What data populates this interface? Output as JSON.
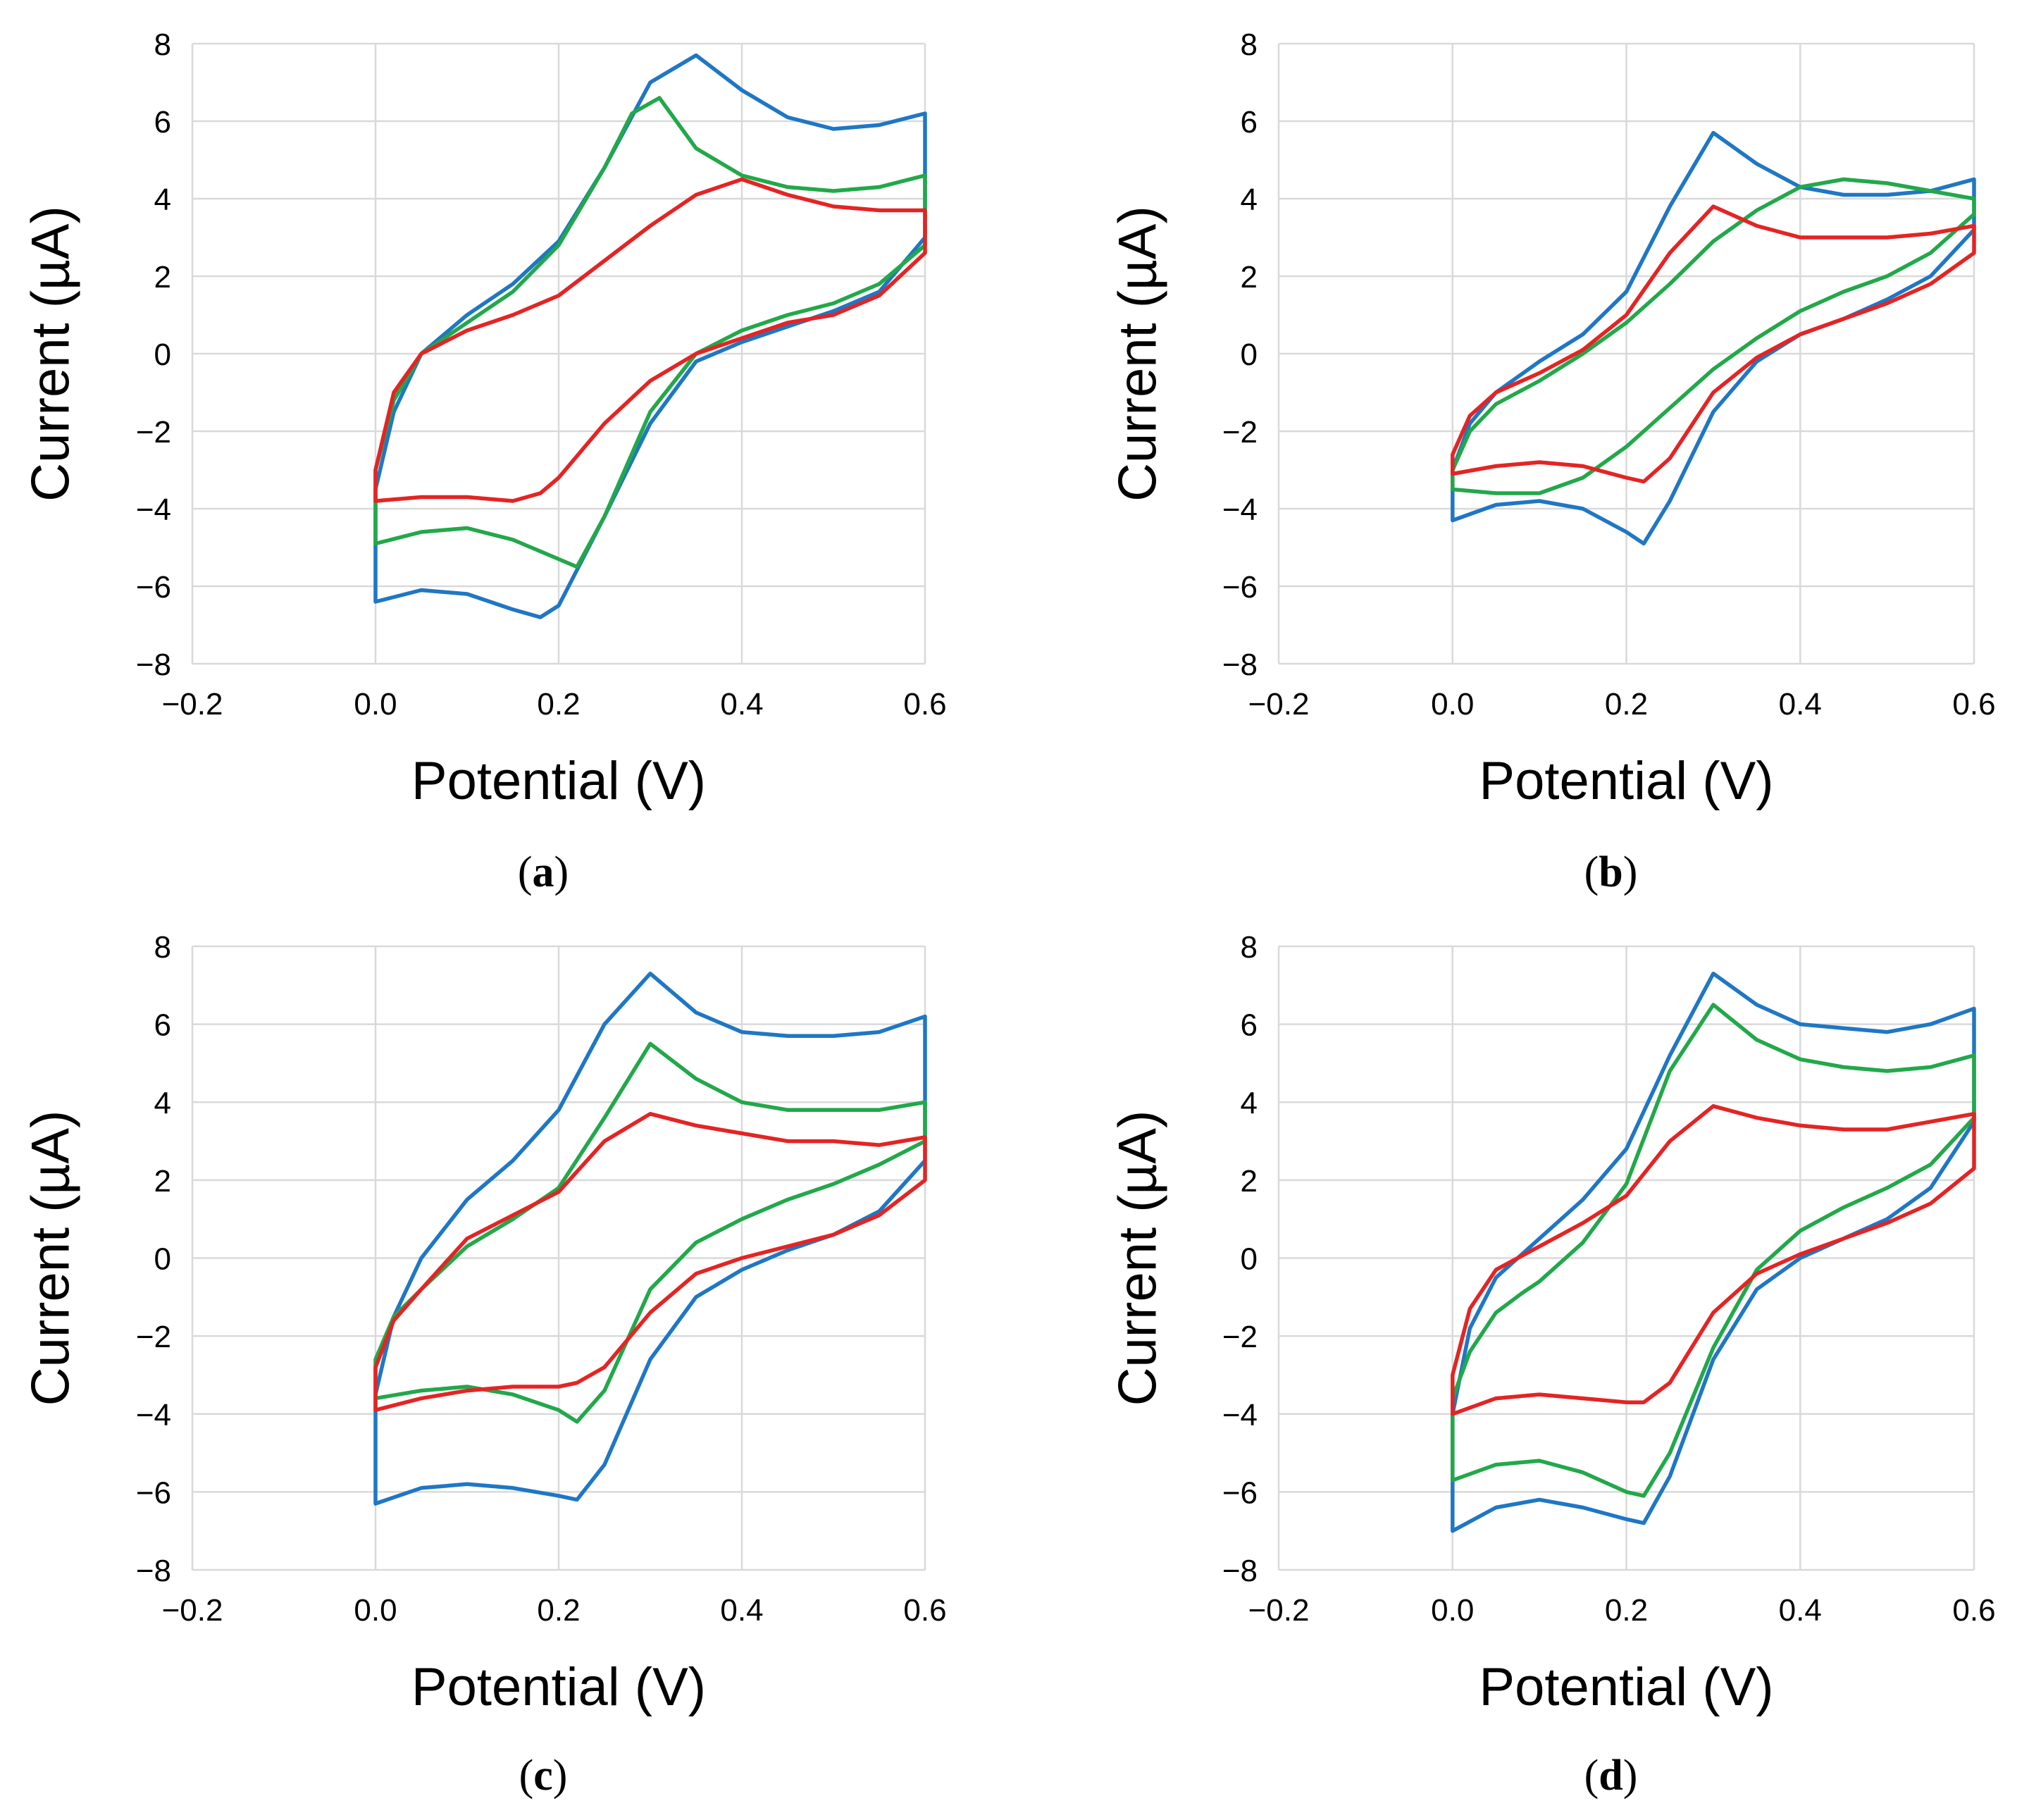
{
  "chart_data": [
    {
      "type": "line",
      "panel": "a",
      "caption": "(a)",
      "xlabel": "Potential (V)",
      "ylabel": "Current (µA)",
      "xlim": [
        -0.2,
        0.6
      ],
      "ylim": [
        -8,
        8
      ],
      "xticks": [
        -0.2,
        0.0,
        0.2,
        0.4,
        0.6
      ],
      "xtick_labels": [
        "−0.2",
        "0.0",
        "0.2",
        "0.4",
        "0.6"
      ],
      "yticks": [
        8,
        6,
        4,
        2,
        0,
        -2,
        -4,
        -6,
        -8
      ],
      "ytick_labels": [
        "8",
        "6",
        "4",
        "2",
        "0",
        "−2",
        "−4",
        "−6",
        "−8"
      ],
      "grid": true,
      "series": [
        {
          "name": "blue",
          "color": "#1f77c4",
          "x": [
            0.0,
            0.02,
            0.05,
            0.1,
            0.15,
            0.2,
            0.25,
            0.3,
            0.35,
            0.4,
            0.45,
            0.5,
            0.55,
            0.6,
            0.6,
            0.55,
            0.5,
            0.45,
            0.4,
            0.35,
            0.3,
            0.25,
            0.2,
            0.18,
            0.15,
            0.1,
            0.05,
            0.0,
            0.0
          ],
          "y": [
            -3.5,
            -1.5,
            0.0,
            1.0,
            1.8,
            2.9,
            4.8,
            7.0,
            7.7,
            6.8,
            6.1,
            5.8,
            5.9,
            6.2,
            3.0,
            1.6,
            1.1,
            0.7,
            0.3,
            -0.2,
            -1.8,
            -4.2,
            -6.5,
            -6.8,
            -6.6,
            -6.2,
            -6.1,
            -6.4,
            -3.5
          ]
        },
        {
          "name": "green",
          "color": "#22a84a",
          "x": [
            0.0,
            0.02,
            0.05,
            0.1,
            0.15,
            0.2,
            0.25,
            0.28,
            0.31,
            0.35,
            0.4,
            0.45,
            0.5,
            0.55,
            0.6,
            0.6,
            0.55,
            0.5,
            0.45,
            0.4,
            0.35,
            0.3,
            0.25,
            0.22,
            0.2,
            0.15,
            0.1,
            0.05,
            0.0,
            0.0
          ],
          "y": [
            -3.0,
            -1.2,
            0.0,
            0.8,
            1.6,
            2.8,
            4.8,
            6.2,
            6.6,
            5.3,
            4.6,
            4.3,
            4.2,
            4.3,
            4.6,
            2.8,
            1.8,
            1.3,
            1.0,
            0.6,
            0.0,
            -1.5,
            -4.2,
            -5.5,
            -5.3,
            -4.8,
            -4.5,
            -4.6,
            -4.9,
            -3.0
          ]
        },
        {
          "name": "red",
          "color": "#e42424",
          "x": [
            0.0,
            0.02,
            0.05,
            0.1,
            0.15,
            0.2,
            0.25,
            0.3,
            0.35,
            0.4,
            0.45,
            0.5,
            0.55,
            0.6,
            0.6,
            0.55,
            0.5,
            0.45,
            0.4,
            0.35,
            0.3,
            0.25,
            0.2,
            0.18,
            0.15,
            0.1,
            0.05,
            0.0,
            0.0
          ],
          "y": [
            -3.0,
            -1.0,
            0.0,
            0.6,
            1.0,
            1.5,
            2.4,
            3.3,
            4.1,
            4.5,
            4.1,
            3.8,
            3.7,
            3.7,
            2.6,
            1.5,
            1.0,
            0.8,
            0.4,
            0.0,
            -0.7,
            -1.8,
            -3.2,
            -3.6,
            -3.8,
            -3.7,
            -3.7,
            -3.8,
            -3.0
          ]
        }
      ]
    },
    {
      "type": "line",
      "panel": "b",
      "caption": "(b)",
      "xlabel": "Potential (V)",
      "ylabel": "Current (µA)",
      "xlim": [
        -0.2,
        0.6
      ],
      "ylim": [
        -8,
        8
      ],
      "xticks": [
        -0.2,
        0.0,
        0.2,
        0.4,
        0.6
      ],
      "xtick_labels": [
        "−0.2",
        "0.0",
        "0.2",
        "0.4",
        "0.6"
      ],
      "yticks": [
        8,
        6,
        4,
        2,
        0,
        -2,
        -4,
        -6,
        -8
      ],
      "ytick_labels": [
        "8",
        "6",
        "4",
        "2",
        "0",
        "−2",
        "−4",
        "−6",
        "−8"
      ],
      "grid": true,
      "series": [
        {
          "name": "blue",
          "color": "#1f77c4",
          "x": [
            0.0,
            0.02,
            0.05,
            0.1,
            0.15,
            0.2,
            0.25,
            0.3,
            0.35,
            0.4,
            0.45,
            0.5,
            0.55,
            0.6,
            0.6,
            0.55,
            0.5,
            0.45,
            0.4,
            0.35,
            0.3,
            0.25,
            0.22,
            0.2,
            0.15,
            0.1,
            0.05,
            0.0,
            0.0
          ],
          "y": [
            -3.0,
            -1.8,
            -1.0,
            -0.2,
            0.5,
            1.6,
            3.8,
            5.7,
            4.9,
            4.3,
            4.1,
            4.1,
            4.2,
            4.5,
            3.2,
            2.0,
            1.4,
            0.9,
            0.5,
            -0.2,
            -1.5,
            -3.8,
            -4.9,
            -4.6,
            -4.0,
            -3.8,
            -3.9,
            -4.3,
            -3.0
          ]
        },
        {
          "name": "green",
          "color": "#22a84a",
          "x": [
            0.0,
            0.02,
            0.05,
            0.1,
            0.15,
            0.2,
            0.25,
            0.3,
            0.35,
            0.4,
            0.45,
            0.5,
            0.55,
            0.6,
            0.6,
            0.55,
            0.5,
            0.45,
            0.4,
            0.35,
            0.3,
            0.25,
            0.2,
            0.15,
            0.1,
            0.05,
            0.0,
            0.0
          ],
          "y": [
            -3.0,
            -2.0,
            -1.3,
            -0.7,
            0.0,
            0.8,
            1.8,
            2.9,
            3.7,
            4.3,
            4.5,
            4.4,
            4.2,
            4.0,
            3.6,
            2.6,
            2.0,
            1.6,
            1.1,
            0.4,
            -0.4,
            -1.4,
            -2.4,
            -3.2,
            -3.6,
            -3.6,
            -3.5,
            -3.0
          ]
        },
        {
          "name": "red",
          "color": "#e42424",
          "x": [
            0.0,
            0.02,
            0.05,
            0.1,
            0.15,
            0.2,
            0.25,
            0.3,
            0.35,
            0.4,
            0.45,
            0.5,
            0.55,
            0.6,
            0.6,
            0.55,
            0.5,
            0.45,
            0.4,
            0.35,
            0.3,
            0.25,
            0.22,
            0.2,
            0.15,
            0.1,
            0.05,
            0.0,
            0.0
          ],
          "y": [
            -2.6,
            -1.6,
            -1.0,
            -0.5,
            0.1,
            1.0,
            2.6,
            3.8,
            3.3,
            3.0,
            3.0,
            3.0,
            3.1,
            3.3,
            2.6,
            1.8,
            1.3,
            0.9,
            0.5,
            -0.1,
            -1.0,
            -2.7,
            -3.3,
            -3.2,
            -2.9,
            -2.8,
            -2.9,
            -3.1,
            -2.6
          ]
        }
      ]
    },
    {
      "type": "line",
      "panel": "c",
      "caption": "(c)",
      "xlabel": "Potential (V)",
      "ylabel": "Current (µA)",
      "xlim": [
        -0.2,
        0.6
      ],
      "ylim": [
        -8,
        8
      ],
      "xticks": [
        -0.2,
        0.0,
        0.2,
        0.4,
        0.6
      ],
      "xtick_labels": [
        "−0.2",
        "0.0",
        "0.2",
        "0.4",
        "0.6"
      ],
      "yticks": [
        8,
        6,
        4,
        2,
        0,
        -2,
        -4,
        -6,
        -8
      ],
      "ytick_labels": [
        "8",
        "6",
        "4",
        "2",
        "0",
        "−2",
        "−4",
        "−6",
        "−8"
      ],
      "grid": true,
      "series": [
        {
          "name": "blue",
          "color": "#1f77c4",
          "x": [
            0.0,
            0.02,
            0.05,
            0.1,
            0.15,
            0.2,
            0.25,
            0.3,
            0.35,
            0.4,
            0.45,
            0.5,
            0.55,
            0.6,
            0.6,
            0.55,
            0.5,
            0.45,
            0.4,
            0.35,
            0.3,
            0.25,
            0.22,
            0.2,
            0.15,
            0.1,
            0.05,
            0.0,
            0.0
          ],
          "y": [
            -3.5,
            -1.5,
            0.0,
            1.5,
            2.5,
            3.8,
            6.0,
            7.3,
            6.3,
            5.8,
            5.7,
            5.7,
            5.8,
            6.2,
            2.5,
            1.2,
            0.6,
            0.2,
            -0.3,
            -1.0,
            -2.6,
            -5.3,
            -6.2,
            -6.1,
            -5.9,
            -5.8,
            -5.9,
            -6.3,
            -3.5
          ]
        },
        {
          "name": "green",
          "color": "#22a84a",
          "x": [
            0.0,
            0.02,
            0.05,
            0.1,
            0.15,
            0.2,
            0.25,
            0.3,
            0.35,
            0.4,
            0.45,
            0.5,
            0.55,
            0.6,
            0.6,
            0.55,
            0.5,
            0.45,
            0.4,
            0.35,
            0.3,
            0.25,
            0.22,
            0.2,
            0.15,
            0.1,
            0.05,
            0.0,
            0.0
          ],
          "y": [
            -2.6,
            -1.5,
            -0.8,
            0.3,
            1.0,
            1.8,
            3.6,
            5.5,
            4.6,
            4.0,
            3.8,
            3.8,
            3.8,
            4.0,
            3.0,
            2.4,
            1.9,
            1.5,
            1.0,
            0.4,
            -0.8,
            -3.4,
            -4.2,
            -3.9,
            -3.5,
            -3.3,
            -3.4,
            -3.6,
            -2.6
          ]
        },
        {
          "name": "red",
          "color": "#e42424",
          "x": [
            0.0,
            0.02,
            0.05,
            0.1,
            0.15,
            0.2,
            0.25,
            0.3,
            0.35,
            0.4,
            0.45,
            0.5,
            0.55,
            0.6,
            0.6,
            0.55,
            0.5,
            0.45,
            0.4,
            0.35,
            0.3,
            0.25,
            0.22,
            0.2,
            0.15,
            0.1,
            0.05,
            0.0,
            0.0
          ],
          "y": [
            -2.8,
            -1.6,
            -0.8,
            0.5,
            1.1,
            1.7,
            3.0,
            3.7,
            3.4,
            3.2,
            3.0,
            3.0,
            2.9,
            3.1,
            2.0,
            1.1,
            0.6,
            0.3,
            0.0,
            -0.4,
            -1.4,
            -2.8,
            -3.2,
            -3.3,
            -3.3,
            -3.4,
            -3.6,
            -3.9,
            -2.8
          ]
        }
      ]
    },
    {
      "type": "line",
      "panel": "d",
      "caption": "(d)",
      "xlabel": "Potential (V)",
      "ylabel": "Current (µA)",
      "xlim": [
        -0.2,
        0.6
      ],
      "ylim": [
        -8,
        8
      ],
      "xticks": [
        -0.2,
        0.0,
        0.2,
        0.4,
        0.6
      ],
      "xtick_labels": [
        "−0.2",
        "0.0",
        "0.2",
        "0.4",
        "0.6"
      ],
      "yticks": [
        8,
        6,
        4,
        2,
        0,
        -2,
        -4,
        -6,
        -8
      ],
      "ytick_labels": [
        "8",
        "6",
        "4",
        "2",
        "0",
        "−2",
        "−4",
        "−6",
        "−8"
      ],
      "grid": true,
      "series": [
        {
          "name": "blue",
          "color": "#1f77c4",
          "x": [
            0.0,
            0.02,
            0.05,
            0.1,
            0.15,
            0.2,
            0.25,
            0.3,
            0.35,
            0.4,
            0.45,
            0.5,
            0.55,
            0.6,
            0.6,
            0.55,
            0.5,
            0.45,
            0.4,
            0.35,
            0.3,
            0.25,
            0.22,
            0.2,
            0.15,
            0.1,
            0.05,
            0.0,
            0.0
          ],
          "y": [
            -4.0,
            -1.8,
            -0.5,
            0.5,
            1.5,
            2.8,
            5.2,
            7.3,
            6.5,
            6.0,
            5.9,
            5.8,
            6.0,
            6.4,
            3.5,
            1.8,
            1.0,
            0.5,
            0.0,
            -0.8,
            -2.6,
            -5.6,
            -6.8,
            -6.7,
            -6.4,
            -6.2,
            -6.4,
            -7.0,
            -4.0
          ]
        },
        {
          "name": "green",
          "color": "#22a84a",
          "x": [
            0.1,
            0.15,
            0.2,
            0.25,
            0.3,
            0.35,
            0.4,
            0.45,
            0.5,
            0.55,
            0.6,
            0.6,
            0.55,
            0.5,
            0.45,
            0.4,
            0.35,
            0.3,
            0.25,
            0.22,
            0.2,
            0.15,
            0.1,
            0.05,
            0.0,
            0.0,
            0.02,
            0.05,
            0.08,
            0.1
          ],
          "y": [
            -0.6,
            0.4,
            1.9,
            4.8,
            6.5,
            5.6,
            5.1,
            4.9,
            4.8,
            4.9,
            5.2,
            3.6,
            2.4,
            1.8,
            1.3,
            0.7,
            -0.3,
            -2.3,
            -5.0,
            -6.1,
            -6.0,
            -5.5,
            -5.2,
            -5.3,
            -5.7,
            -3.6,
            -2.4,
            -1.4,
            -0.9,
            -0.6
          ]
        },
        {
          "name": "red",
          "color": "#e42424",
          "x": [
            0.0,
            0.02,
            0.05,
            0.1,
            0.15,
            0.2,
            0.25,
            0.3,
            0.35,
            0.4,
            0.45,
            0.5,
            0.55,
            0.6,
            0.6,
            0.55,
            0.5,
            0.45,
            0.4,
            0.35,
            0.3,
            0.25,
            0.22,
            0.2,
            0.15,
            0.1,
            0.05,
            0.0,
            0.0
          ],
          "y": [
            -3.0,
            -1.3,
            -0.3,
            0.3,
            0.9,
            1.6,
            3.0,
            3.9,
            3.6,
            3.4,
            3.3,
            3.3,
            3.5,
            3.7,
            2.3,
            1.4,
            0.9,
            0.5,
            0.1,
            -0.4,
            -1.4,
            -3.2,
            -3.7,
            -3.7,
            -3.6,
            -3.5,
            -3.6,
            -4.0,
            -3.0
          ]
        }
      ]
    }
  ]
}
